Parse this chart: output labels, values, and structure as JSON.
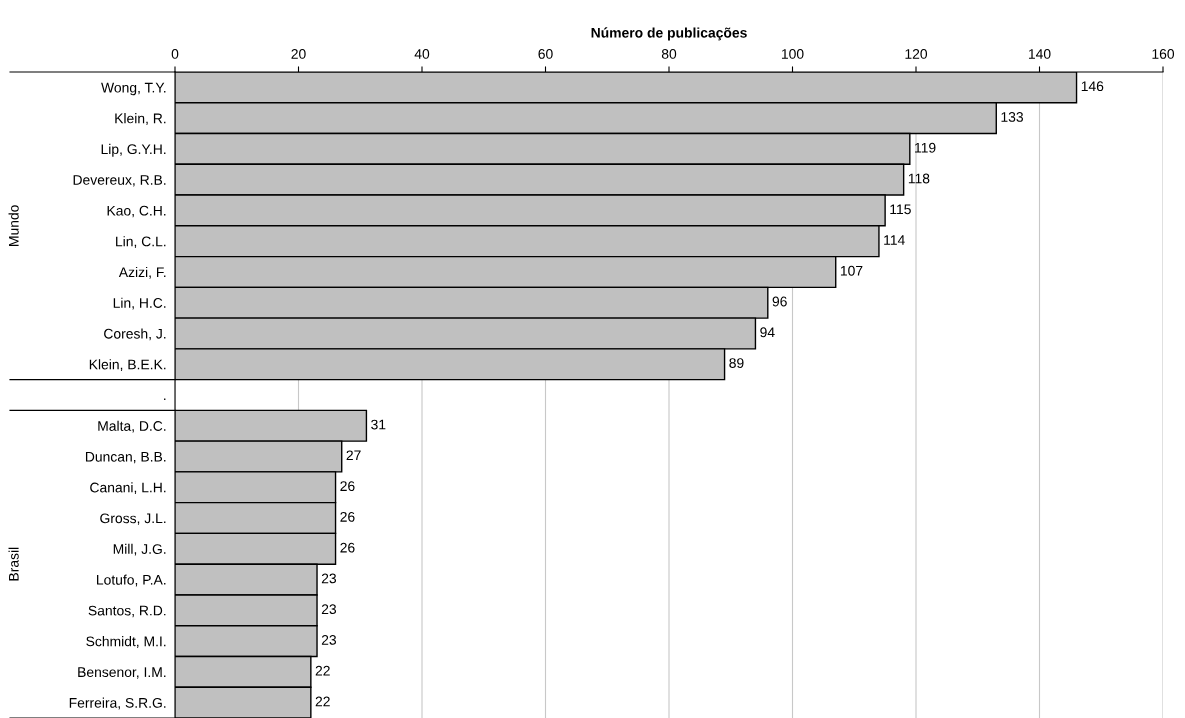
{
  "chart_data": {
    "type": "bar",
    "orientation": "horizontal",
    "xlabel": "Número de publicações",
    "categories": [
      "Wong, T.Y.",
      "Klein, R.",
      "Lip, G.Y.H.",
      "Devereux, R.B.",
      "Kao, C.H.",
      "Lin, C.L.",
      "Azizi, F.",
      "Lin, H.C.",
      "Coresh, J.",
      "Klein, B.E.K.",
      ".",
      "Malta, D.C.",
      "Duncan, B.B.",
      "Canani, L.H.",
      "Gross, J.L.",
      "Mill, J.G.",
      "Lotufo, P.A.",
      "Santos, R.D.",
      "Schmidt, M.I.",
      "Bensenor, I.M.",
      "Ferreira, S.R.G."
    ],
    "values": [
      146,
      133,
      119,
      118,
      115,
      114,
      107,
      96,
      94,
      89,
      null,
      31,
      27,
      26,
      26,
      26,
      23,
      23,
      23,
      22,
      22
    ],
    "color": "#c0c0c0",
    "data_labels": true,
    "xlim": [
      0,
      160
    ],
    "xticks": [
      0,
      20,
      40,
      60,
      80,
      100,
      120,
      140,
      160
    ],
    "grid": "x",
    "annotations": [
      "Mundo",
      "Brasil"
    ]
  }
}
